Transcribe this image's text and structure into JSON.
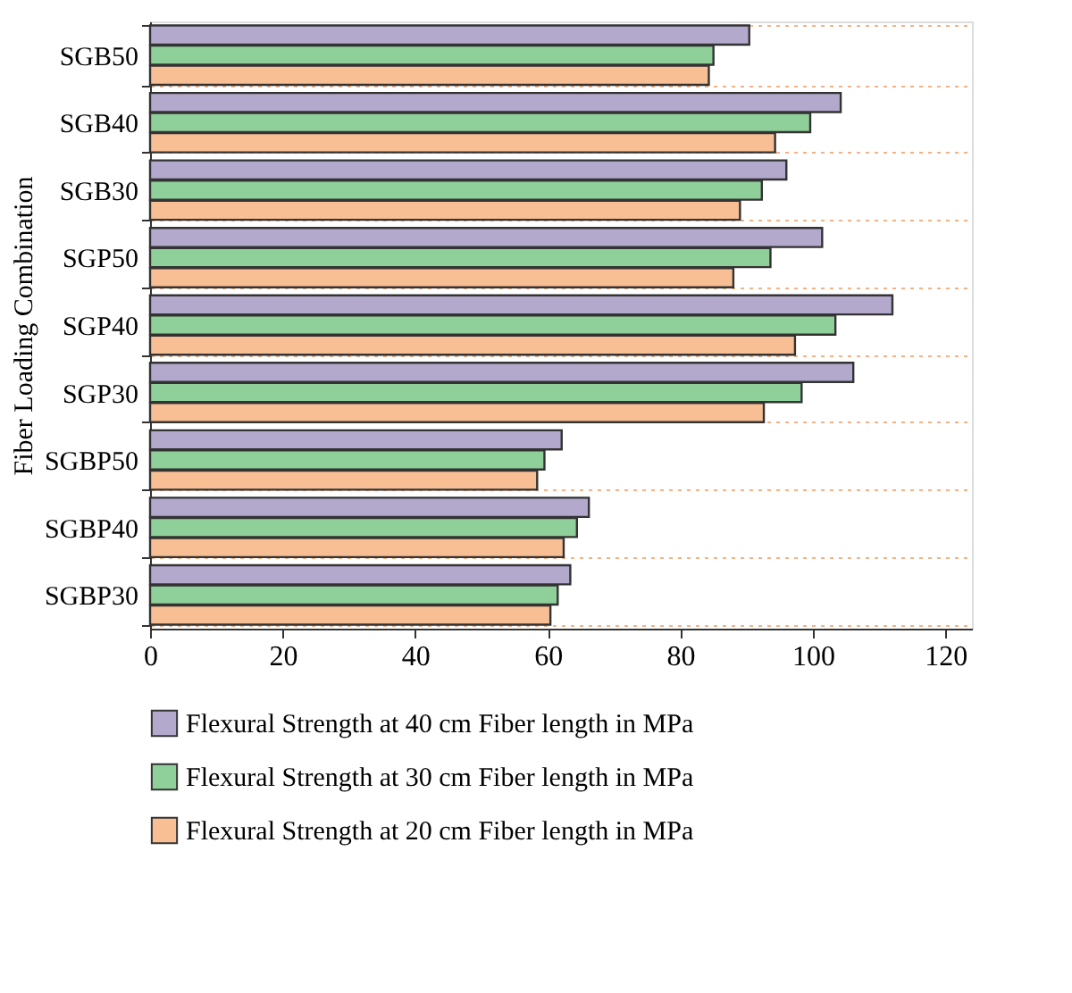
{
  "chart_data": {
    "type": "bar",
    "orientation": "horizontal",
    "ylabel": "Fiber Loading Combination",
    "categories": [
      "SGB50",
      "SGB40",
      "SGB30",
      "SGP50",
      "SGP40",
      "SGP30",
      "SGBP50",
      "SGBP40",
      "SGBP30"
    ],
    "series": [
      {
        "name": "Flexural Strength at 40 cm Fiber length in MPa",
        "color": "#b3a9cc",
        "values": [
          90.4,
          104.2,
          96.0,
          101.4,
          112.0,
          106.1,
          62.1,
          66.2,
          63.4
        ]
      },
      {
        "name": "Flexural Strength at 30 cm Fiber length in MPa",
        "color": "#8fcf9a",
        "values": [
          85.0,
          99.6,
          92.3,
          93.6,
          103.4,
          98.3,
          59.5,
          64.4,
          61.5
        ]
      },
      {
        "name": "Flexural Strength at 20 cm Fiber length in MPa",
        "color": "#f9bf94",
        "values": [
          84.3,
          94.3,
          89.0,
          88.0,
          97.3,
          92.6,
          58.4,
          62.4,
          60.4
        ]
      }
    ],
    "xlim": [
      0,
      124
    ],
    "xticks": [
      0,
      20,
      40,
      60,
      80,
      100,
      120
    ],
    "grid": "y",
    "legend": "bottom"
  }
}
